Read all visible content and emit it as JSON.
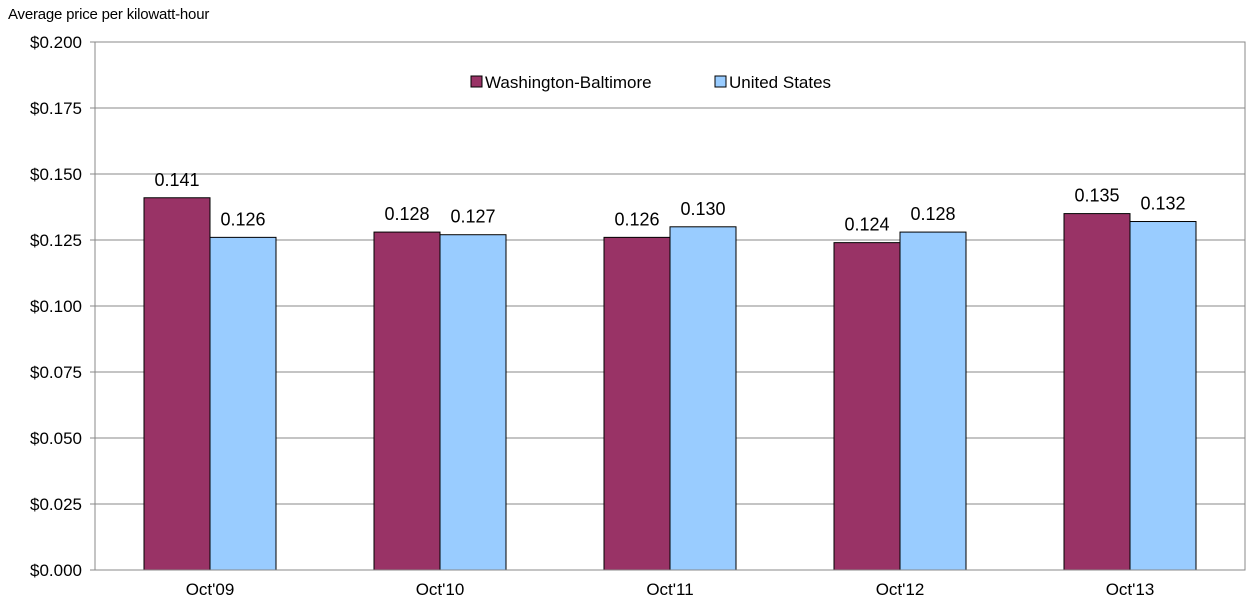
{
  "chart_data": {
    "type": "bar",
    "title": "",
    "ylabel": "Average price per kilowatt-hour",
    "xlabel": "",
    "categories": [
      "Oct'09",
      "Oct'10",
      "Oct'11",
      "Oct'12",
      "Oct'13"
    ],
    "series": [
      {
        "name": "Washington-Baltimore",
        "values": [
          0.141,
          0.128,
          0.126,
          0.124,
          0.135
        ],
        "labels": [
          "0.141",
          "0.128",
          "0.126",
          "0.124",
          "0.135"
        ],
        "color": "#993366"
      },
      {
        "name": "United States",
        "values": [
          0.126,
          0.127,
          0.13,
          0.128,
          0.132
        ],
        "labels": [
          "0.126",
          "0.127",
          "0.130",
          "0.128",
          "0.132"
        ],
        "color": "#99ccff"
      }
    ],
    "ylim": [
      0,
      0.2
    ],
    "yticks": [
      0,
      0.025,
      0.05,
      0.075,
      0.1,
      0.125,
      0.15,
      0.175,
      0.2
    ],
    "ytick_labels": [
      "$0.000",
      "$0.025",
      "$0.050",
      "$0.075",
      "$0.100",
      "$0.125",
      "$0.150",
      "$0.175",
      "$0.200"
    ],
    "grid": true,
    "legend_position": "top-center"
  }
}
